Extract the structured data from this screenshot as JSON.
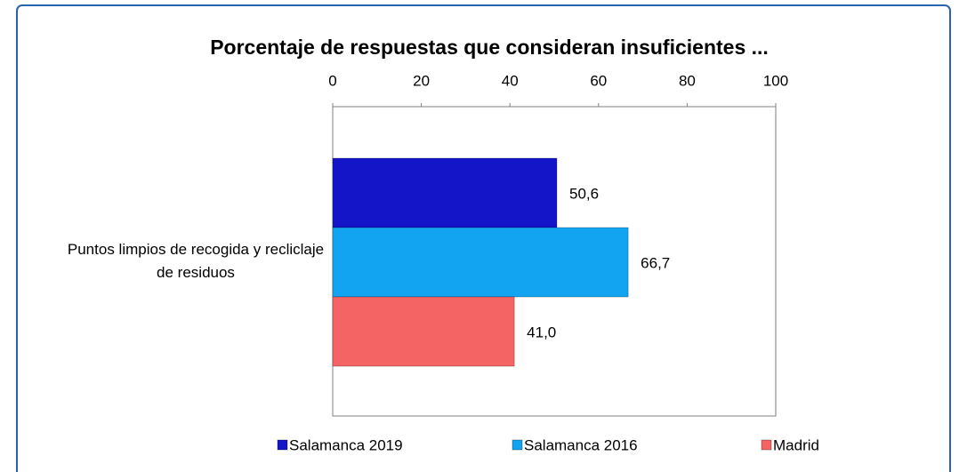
{
  "chart_data": {
    "type": "bar",
    "orientation": "horizontal",
    "title": "Porcentaje de respuestas  que consideran insuficientes ...",
    "categories": [
      "Puntos limpios de recogida y recliclaje de residuos"
    ],
    "series": [
      {
        "name": "Salamanca 2019",
        "color": "#1414c8",
        "values": [
          50.6
        ],
        "value_labels": [
          "50,6"
        ]
      },
      {
        "name": "Salamanca 2016",
        "color": "#12a4f0",
        "values": [
          66.7
        ],
        "value_labels": [
          "66,7"
        ]
      },
      {
        "name": "Madrid",
        "color": "#f46464",
        "values": [
          41.0
        ],
        "value_labels": [
          "41,0"
        ]
      }
    ],
    "xlim": [
      0,
      100
    ],
    "xticks": [
      0,
      20,
      40,
      60,
      80,
      100
    ],
    "legend": "bottom"
  }
}
